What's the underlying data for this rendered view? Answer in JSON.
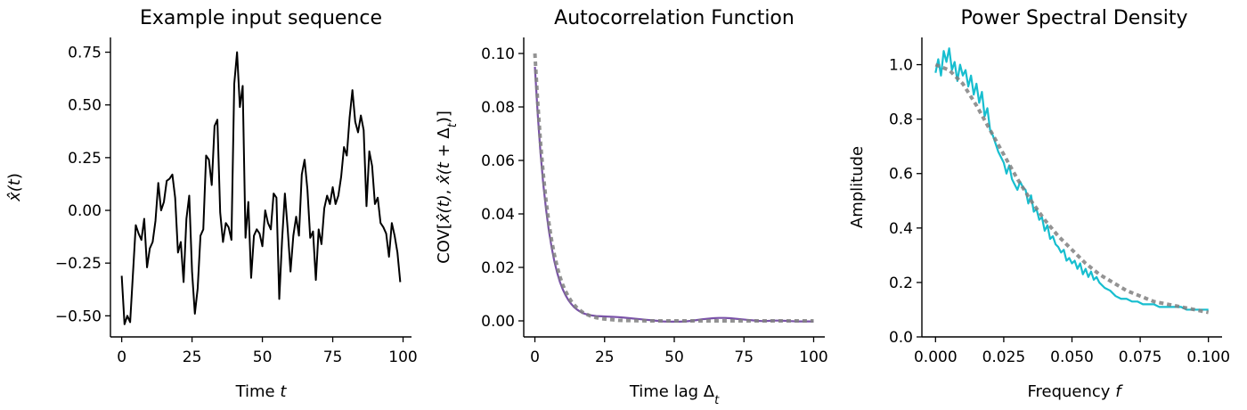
{
  "chart_data": [
    {
      "type": "line",
      "title": "Example input sequence",
      "xlabel": "Time t",
      "ylabel": "x̂(t)",
      "xlim": [
        -4,
        103
      ],
      "ylim": [
        -0.6,
        0.82
      ],
      "xticks": [
        0,
        25,
        50,
        75,
        100
      ],
      "xtick_labels": [
        "0",
        "25",
        "50",
        "75",
        "100"
      ],
      "yticks": [
        -0.5,
        -0.25,
        0.0,
        0.25,
        0.5,
        0.75
      ],
      "ytick_labels": [
        "−0.50",
        "−0.25",
        "0.00",
        "0.25",
        "0.50",
        "0.75"
      ],
      "grid": false,
      "series": [
        {
          "color": "#000000",
          "style": "solid",
          "x": [
            0,
            1,
            2,
            3,
            4,
            5,
            6,
            7,
            8,
            9,
            10,
            11,
            12,
            13,
            14,
            15,
            16,
            17,
            18,
            19,
            20,
            21,
            22,
            23,
            24,
            25,
            26,
            27,
            28,
            29,
            30,
            31,
            32,
            33,
            34,
            35,
            36,
            37,
            38,
            39,
            40,
            41,
            42,
            43,
            44,
            45,
            46,
            47,
            48,
            49,
            50,
            51,
            52,
            53,
            54,
            55,
            56,
            57,
            58,
            59,
            60,
            61,
            62,
            63,
            64,
            65,
            66,
            67,
            68,
            69,
            70,
            71,
            72,
            73,
            74,
            75,
            76,
            77,
            78,
            79,
            80,
            81,
            82,
            83,
            84,
            85,
            86,
            87,
            88,
            89,
            90,
            91,
            92,
            93,
            94,
            95,
            96,
            97,
            98,
            99
          ],
          "y": [
            -0.31,
            -0.54,
            -0.5,
            -0.53,
            -0.3,
            -0.07,
            -0.11,
            -0.14,
            -0.04,
            -0.27,
            -0.18,
            -0.15,
            -0.05,
            0.13,
            0.0,
            0.04,
            0.14,
            0.15,
            0.17,
            0.06,
            -0.2,
            -0.15,
            -0.34,
            -0.04,
            0.07,
            -0.29,
            -0.49,
            -0.37,
            -0.12,
            -0.09,
            0.26,
            0.24,
            0.12,
            0.4,
            0.43,
            -0.01,
            -0.15,
            -0.06,
            -0.08,
            -0.14,
            0.6,
            0.75,
            0.49,
            0.59,
            -0.13,
            0.04,
            -0.32,
            -0.12,
            -0.09,
            -0.11,
            -0.17,
            0.0,
            -0.06,
            -0.09,
            0.08,
            0.06,
            -0.42,
            -0.14,
            0.08,
            -0.09,
            -0.29,
            -0.12,
            -0.03,
            -0.12,
            0.17,
            0.24,
            0.1,
            -0.13,
            -0.1,
            -0.33,
            -0.09,
            -0.16,
            0.01,
            0.07,
            0.03,
            0.11,
            0.03,
            0.07,
            0.16,
            0.3,
            0.26,
            0.44,
            0.57,
            0.42,
            0.37,
            0.45,
            0.38,
            0.02,
            0.28,
            0.21,
            0.03,
            0.06,
            -0.06,
            -0.08,
            -0.11,
            -0.22,
            -0.06,
            -0.12,
            -0.2,
            -0.34
          ]
        }
      ]
    },
    {
      "type": "line",
      "title": "Autocorrelation Function",
      "xlabel": "Time lag Δt",
      "ylabel": "COV[x̂(t), x̂(t + Δt)]",
      "xlim": [
        -4,
        104
      ],
      "ylim": [
        -0.006,
        0.106
      ],
      "xticks": [
        0,
        25,
        50,
        75,
        100
      ],
      "xtick_labels": [
        "0",
        "25",
        "50",
        "75",
        "100"
      ],
      "yticks": [
        0.0,
        0.02,
        0.04,
        0.06,
        0.08,
        0.1
      ],
      "ytick_labels": [
        "0.00",
        "0.02",
        "0.04",
        "0.06",
        "0.08",
        "0.10"
      ],
      "grid": false,
      "series": [
        {
          "color": "#7a52a8",
          "style": "solid",
          "x": [
            0,
            1,
            2,
            3,
            4,
            5,
            6,
            7,
            8,
            9,
            10,
            11,
            12,
            13,
            14,
            15,
            16,
            17,
            18,
            20,
            22,
            24,
            26,
            28,
            30,
            32,
            34,
            36,
            38,
            40,
            42,
            44,
            46,
            48,
            50,
            52,
            54,
            56,
            58,
            60,
            62,
            64,
            66,
            68,
            70,
            72,
            74,
            76,
            78,
            80,
            82,
            84,
            86,
            88,
            90,
            92,
            94,
            96,
            98,
            100
          ],
          "y": [
            0.095,
            0.0775,
            0.063,
            0.0512,
            0.0417,
            0.0338,
            0.0275,
            0.0222,
            0.018,
            0.0145,
            0.0118,
            0.0096,
            0.0078,
            0.0064,
            0.0052,
            0.0043,
            0.0036,
            0.003,
            0.0026,
            0.0021,
            0.0018,
            0.0017,
            0.0016,
            0.0015,
            0.0014,
            0.0012,
            0.001,
            0.0008,
            0.0006,
            0.0004,
            0.0002,
            0.0,
            -0.0002,
            -0.0003,
            -0.0003,
            -0.0003,
            -0.0002,
            0.0,
            0.0003,
            0.0006,
            0.0008,
            0.001,
            0.0011,
            0.0011,
            0.001,
            0.0008,
            0.0006,
            0.0004,
            0.0002,
            0.0,
            -0.0001,
            0.0,
            0.0001,
            0.0001,
            0.0,
            -0.0001,
            -0.0002,
            -0.0002,
            -0.0002,
            -0.0002
          ]
        },
        {
          "color": "#808080",
          "style": "dotted",
          "x": [
            0,
            1,
            2,
            3,
            4,
            5,
            6,
            7,
            8,
            9,
            10,
            11,
            12,
            13,
            14,
            15,
            16,
            17,
            18,
            20,
            22,
            24,
            26,
            28,
            30,
            35,
            40,
            45,
            50,
            55,
            60,
            65,
            70,
            75,
            80,
            85,
            90,
            95,
            100
          ],
          "y": [
            0.1,
            0.0819,
            0.067,
            0.0549,
            0.0449,
            0.0368,
            0.0301,
            0.0247,
            0.0202,
            0.0165,
            0.0135,
            0.0111,
            0.0091,
            0.0074,
            0.0061,
            0.005,
            0.0041,
            0.0033,
            0.0027,
            0.0018,
            0.0012,
            0.0008,
            0.0006,
            0.0004,
            0.0002,
            0.0001,
            0.0,
            0.0,
            0.0,
            0.0,
            0.0,
            0.0,
            0.0,
            0.0,
            0.0,
            0.0,
            0.0,
            0.0,
            0.0
          ]
        }
      ]
    },
    {
      "type": "line",
      "title": "Power Spectral Density",
      "xlabel": "Frequency f",
      "ylabel": "Amplitude",
      "xlim": [
        -0.005,
        0.105
      ],
      "ylim": [
        0.0,
        1.1
      ],
      "xticks": [
        0.0,
        0.025,
        0.05,
        0.075,
        0.1
      ],
      "xtick_labels": [
        "0.000",
        "0.025",
        "0.050",
        "0.075",
        "0.100"
      ],
      "yticks": [
        0.0,
        0.2,
        0.4,
        0.6,
        0.8,
        1.0
      ],
      "ytick_labels": [
        "0.0",
        "0.2",
        "0.4",
        "0.6",
        "0.8",
        "1.0"
      ],
      "grid": false,
      "series": [
        {
          "color": "#17becf",
          "style": "solid",
          "x": [
            0.0,
            0.001,
            0.002,
            0.003,
            0.004,
            0.005,
            0.006,
            0.007,
            0.008,
            0.009,
            0.01,
            0.011,
            0.012,
            0.013,
            0.014,
            0.015,
            0.016,
            0.017,
            0.018,
            0.019,
            0.02,
            0.021,
            0.022,
            0.023,
            0.024,
            0.025,
            0.026,
            0.027,
            0.028,
            0.029,
            0.03,
            0.031,
            0.032,
            0.033,
            0.034,
            0.035,
            0.036,
            0.037,
            0.038,
            0.039,
            0.04,
            0.041,
            0.042,
            0.043,
            0.044,
            0.045,
            0.046,
            0.047,
            0.048,
            0.049,
            0.05,
            0.051,
            0.052,
            0.053,
            0.054,
            0.055,
            0.056,
            0.057,
            0.058,
            0.059,
            0.06,
            0.062,
            0.064,
            0.066,
            0.068,
            0.07,
            0.072,
            0.074,
            0.076,
            0.078,
            0.08,
            0.082,
            0.084,
            0.086,
            0.088,
            0.09,
            0.092,
            0.094,
            0.096,
            0.098,
            0.1
          ],
          "y": [
            0.97,
            1.02,
            0.96,
            1.05,
            1.01,
            1.06,
            0.98,
            1.01,
            0.94,
            1.0,
            0.96,
            0.98,
            0.92,
            0.96,
            0.89,
            0.93,
            0.86,
            0.9,
            0.81,
            0.84,
            0.76,
            0.74,
            0.71,
            0.68,
            0.66,
            0.64,
            0.6,
            0.63,
            0.58,
            0.56,
            0.54,
            0.57,
            0.55,
            0.54,
            0.49,
            0.52,
            0.46,
            0.47,
            0.43,
            0.44,
            0.39,
            0.41,
            0.36,
            0.37,
            0.34,
            0.33,
            0.31,
            0.32,
            0.28,
            0.29,
            0.27,
            0.28,
            0.25,
            0.27,
            0.23,
            0.25,
            0.22,
            0.24,
            0.21,
            0.22,
            0.2,
            0.18,
            0.17,
            0.15,
            0.14,
            0.14,
            0.13,
            0.13,
            0.12,
            0.12,
            0.12,
            0.11,
            0.11,
            0.11,
            0.11,
            0.11,
            0.1,
            0.1,
            0.1,
            0.1,
            0.1
          ]
        },
        {
          "color": "#808080",
          "style": "dotted",
          "x": [
            0.0,
            0.005,
            0.01,
            0.015,
            0.02,
            0.025,
            0.03,
            0.035,
            0.04,
            0.045,
            0.05,
            0.055,
            0.06,
            0.065,
            0.07,
            0.075,
            0.08,
            0.085,
            0.09,
            0.095,
            0.1
          ],
          "y": [
            1.0,
            0.98,
            0.93,
            0.85,
            0.76,
            0.67,
            0.58,
            0.5,
            0.43,
            0.37,
            0.32,
            0.27,
            0.23,
            0.2,
            0.17,
            0.15,
            0.13,
            0.12,
            0.11,
            0.1,
            0.09
          ]
        }
      ]
    }
  ]
}
